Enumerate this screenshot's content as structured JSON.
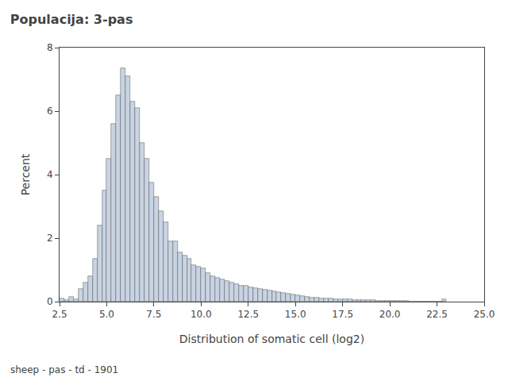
{
  "chart_data": {
    "type": "histogram",
    "title": "Populacija: 3-pas",
    "xlabel": "Distribution of somatic cell (log2)",
    "ylabel": "Percent",
    "annotations": [
      "sheep - pas - td - 1901"
    ],
    "bins": [
      2.5,
      2.75,
      3,
      3.25,
      3.5,
      3.75,
      4,
      4.25,
      4.5,
      4.75,
      5,
      5.25,
      5.5,
      5.75,
      6,
      6.25,
      6.5,
      6.75,
      7,
      7.25,
      7.5,
      7.75,
      8,
      8.25,
      8.5,
      8.75,
      9,
      9.25,
      9.5,
      9.75,
      10,
      10.25,
      10.5,
      10.75,
      11,
      11.25,
      11.5,
      11.75,
      12,
      12.25,
      12.5,
      12.75,
      13,
      13.25,
      13.5,
      13.75,
      14,
      14.25,
      14.5,
      14.75,
      15,
      15.25,
      15.5,
      15.75,
      16,
      16.25,
      16.5,
      16.75,
      17,
      17.25,
      17.5,
      17.75,
      18,
      18.25,
      18.5,
      18.75,
      19,
      19.25,
      19.5,
      19.75,
      20,
      20.25,
      20.5,
      20.75,
      21,
      21.25,
      21.5,
      21.75,
      22,
      22.25,
      22.5,
      22.75,
      23
    ],
    "values": [
      0.1,
      0.05,
      0.15,
      0.08,
      0.4,
      0.6,
      0.8,
      1.35,
      2.4,
      3.5,
      4.5,
      5.6,
      6.5,
      7.35,
      7.1,
      6.3,
      6.1,
      5.0,
      4.5,
      3.75,
      3.3,
      2.85,
      2.5,
      1.9,
      1.9,
      1.55,
      1.45,
      1.35,
      1.15,
      1.1,
      1.05,
      0.9,
      0.8,
      0.75,
      0.7,
      0.65,
      0.6,
      0.55,
      0.5,
      0.5,
      0.45,
      0.43,
      0.4,
      0.38,
      0.35,
      0.32,
      0.3,
      0.28,
      0.25,
      0.22,
      0.2,
      0.18,
      0.15,
      0.13,
      0.12,
      0.11,
      0.1,
      0.09,
      0.08,
      0.08,
      0.07,
      0.07,
      0.06,
      0.05,
      0.05,
      0.04,
      0.04,
      0.03,
      0.03,
      0.03,
      0.02,
      0.02,
      0.02,
      0.02,
      0.01,
      0.01,
      0.01,
      0.01,
      0.0,
      0.0,
      0.0,
      0.08
    ],
    "color": "#c8d4e3",
    "xlim": [
      2.5,
      25
    ],
    "xticks": [
      2.5,
      {
        "value": 5,
        "label": "5.0"
      },
      7.5,
      {
        "value": 10,
        "label": "10.0"
      },
      12.5,
      {
        "value": 15,
        "label": "15.0"
      },
      17.5,
      {
        "value": 20,
        "label": "20.0"
      },
      22.5,
      {
        "value": 25,
        "label": "25.0"
      }
    ],
    "ylim": [
      0,
      8
    ],
    "yticks": [
      0,
      2,
      4,
      6,
      8
    ],
    "grid": false
  }
}
